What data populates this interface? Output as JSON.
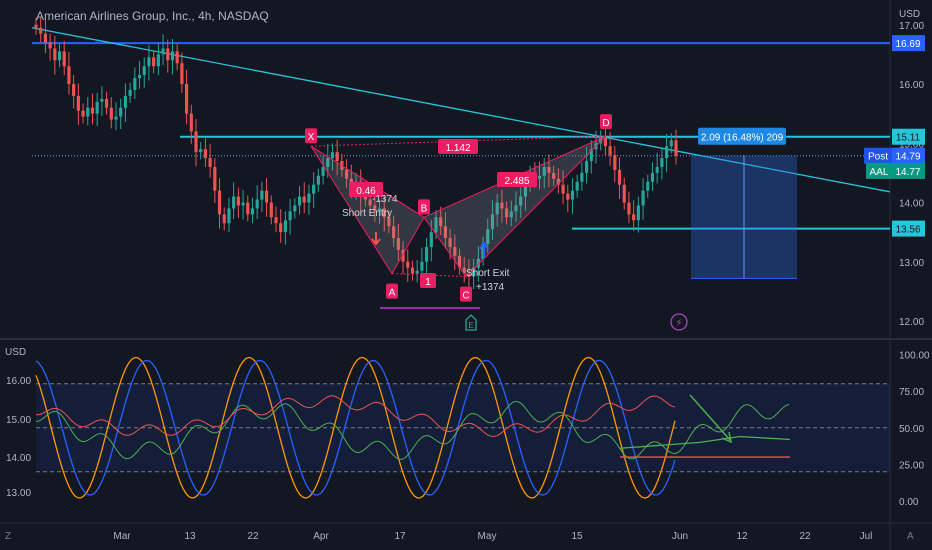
{
  "header": {
    "title": "American Airlines Group, Inc., 4h, NASDAQ",
    "currency_top": "USD",
    "currency_bottom": "USD",
    "tz_button": "Z",
    "auto_button": "A"
  },
  "colors": {
    "background": "#131722",
    "up": "#26a69a",
    "down": "#ef5350",
    "level_line": "#2962ff",
    "cyan_line": "#26c6da",
    "pattern_pink": "#e91e63",
    "position_box": "#2a6bd6"
  },
  "chart_data": [
    {
      "type": "candlestick",
      "title": "American Airlines Group, Inc., 4h, NASDAQ",
      "x_ticks": [
        "Mar",
        "13",
        "22",
        "Apr",
        "17",
        "May",
        "15",
        "Jun",
        "12",
        "22",
        "Jul"
      ],
      "y_ticks": [
        "17.00",
        "16.00",
        "15.00",
        "14.00",
        "13.00",
        "12.00"
      ],
      "y_range": [
        11.8,
        17.3
      ],
      "price_labels": [
        {
          "text": "16.69",
          "value": 16.69,
          "kind": "blue"
        },
        {
          "text": "15.11",
          "value": 15.11,
          "kind": "cyan"
        },
        {
          "text": "Post",
          "extra": "14.79",
          "value": 14.79,
          "kind": "post"
        },
        {
          "text": "AAL",
          "extra": "14.77",
          "value": 14.77,
          "kind": "green"
        },
        {
          "text": "13.56",
          "value": 13.56,
          "kind": "cyan"
        }
      ],
      "horizontal_levels": [
        16.69,
        15.11,
        13.56
      ],
      "harmonic_pattern": {
        "points": [
          {
            "label": "X",
            "price": 14.95
          },
          {
            "label": "A",
            "price": 12.8
          },
          {
            "label": "B",
            "price": 13.75
          },
          {
            "label": "C",
            "price": 12.75
          },
          {
            "label": "D",
            "price": 15.12
          }
        ],
        "ratios": [
          "0.46",
          "1.142",
          "1",
          "2.485"
        ]
      },
      "trades": [
        {
          "label": "Short Entry",
          "qty": "-1374"
        },
        {
          "label": "Short Exit",
          "qty": "+1374"
        }
      ],
      "position_label": "2.09 (16.48%) 209",
      "event_markers": [
        "E",
        "⚡"
      ],
      "candles_close_start": 17.0,
      "closes": [
        16.95,
        16.85,
        16.7,
        16.6,
        16.4,
        16.55,
        16.3,
        16.0,
        15.8,
        15.55,
        15.45,
        15.6,
        15.5,
        15.7,
        15.75,
        15.6,
        15.4,
        15.45,
        15.6,
        15.8,
        15.9,
        16.1,
        16.15,
        16.3,
        16.45,
        16.3,
        16.5,
        16.6,
        16.4,
        16.55,
        16.35,
        16.0,
        15.5,
        15.2,
        14.85,
        14.9,
        14.75,
        14.6,
        14.2,
        13.8,
        13.65,
        13.9,
        14.1,
        13.95,
        14.0,
        13.8,
        13.9,
        14.05,
        14.2,
        14.0,
        13.75,
        13.65,
        13.5,
        13.7,
        13.85,
        13.95,
        14.1,
        14.0,
        14.15,
        14.3,
        14.45,
        14.6,
        14.75,
        14.85,
        14.7,
        14.55,
        14.4,
        14.25,
        14.35,
        14.1,
        14.05,
        13.95,
        13.85,
        13.9,
        13.75,
        13.6,
        13.4,
        13.2,
        13.0,
        12.9,
        12.8,
        12.85,
        13.0,
        13.25,
        13.5,
        13.75,
        13.6,
        13.4,
        13.25,
        13.1,
        12.9,
        12.8,
        12.75,
        12.9,
        13.05,
        13.3,
        13.55,
        13.8,
        14.0,
        13.9,
        13.75,
        13.85,
        13.95,
        14.1,
        14.3,
        14.5,
        14.4,
        14.45,
        14.6,
        14.5,
        14.4,
        14.3,
        14.15,
        14.05,
        14.2,
        14.35,
        14.5,
        14.7,
        14.9,
        15.0,
        15.1,
        14.95,
        14.8,
        14.55,
        14.3,
        14.0,
        13.8,
        13.7,
        13.95,
        14.2,
        14.35,
        14.5,
        14.6,
        14.75,
        14.95,
        15.05,
        14.79
      ],
      "indicator": {
        "y_ticks": [
          "16.00",
          "15.00",
          "14.00",
          "13.00"
        ],
        "right_ticks": [
          "100.00",
          "75.00",
          "50.00",
          "25.00",
          "0.00"
        ],
        "bands": [
          80,
          50,
          20
        ]
      }
    }
  ]
}
